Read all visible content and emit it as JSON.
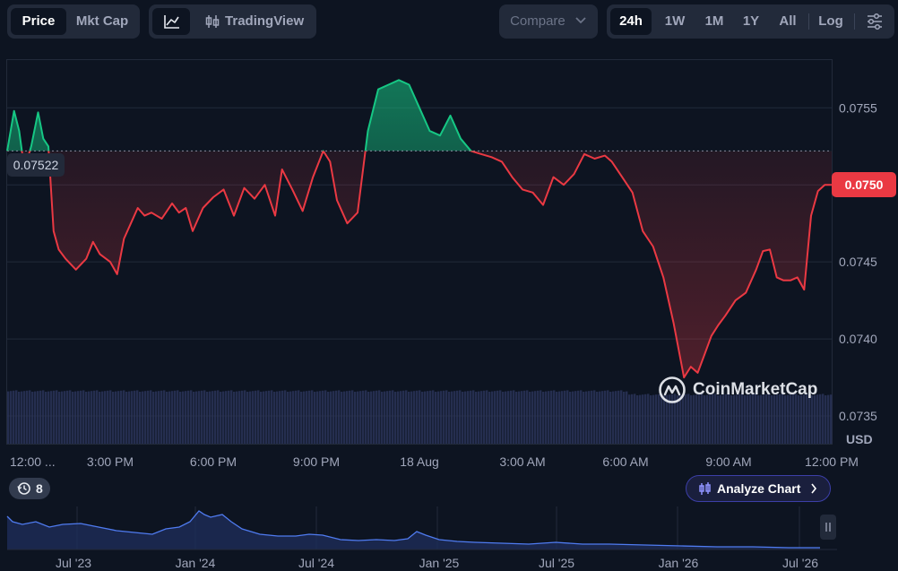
{
  "header": {
    "metric_tabs": [
      {
        "label": "Price",
        "active": true
      },
      {
        "label": "Mkt Cap",
        "active": false
      }
    ],
    "chart_style_tradingview": "TradingView",
    "compare_label": "Compare",
    "range_tabs": [
      {
        "label": "24h",
        "active": true
      },
      {
        "label": "1W",
        "active": false
      },
      {
        "label": "1M",
        "active": false
      },
      {
        "label": "1Y",
        "active": false
      },
      {
        "label": "All",
        "active": false
      }
    ],
    "log_label": "Log"
  },
  "chart_data": {
    "type": "area",
    "baseline_price": 0.07522,
    "baseline_label": "0.07522",
    "current_price_label": "0.0750",
    "currency_label": "USD",
    "y_ticks": [
      "0.0755",
      "0.0750",
      "0.0745",
      "0.0740",
      "0.0735"
    ],
    "y_tick_values": [
      0.0755,
      0.075,
      0.0745,
      0.074,
      0.0735
    ],
    "ylim": [
      0.07332,
      0.07581
    ],
    "x_ticks": [
      "12:00 ...",
      "3:00 PM",
      "6:00 PM",
      "9:00 PM",
      "18 Aug",
      "3:00 AM",
      "6:00 AM",
      "9:00 AM",
      "12:00 PM"
    ],
    "x_tick_hours": [
      0,
      3,
      6,
      9,
      12,
      15,
      18,
      21,
      24
    ],
    "xlim": [
      0,
      24
    ],
    "colors": {
      "above": "#16c784",
      "below": "#ea3943"
    },
    "series": [
      {
        "x": [
          0,
          0.2,
          0.35,
          0.5,
          0.7,
          0.9,
          1.05,
          1.2,
          1.35,
          1.5,
          1.7,
          2.0,
          2.3,
          2.5,
          2.7,
          3.0,
          3.2,
          3.4,
          3.6,
          3.8,
          4.0,
          4.2,
          4.5,
          4.8,
          5.0,
          5.2,
          5.4,
          5.7,
          6.0,
          6.3,
          6.6,
          6.9,
          7.2,
          7.5,
          7.8,
          8.0,
          8.3,
          8.6,
          8.9,
          9.2,
          9.4,
          9.6,
          9.9,
          10.2,
          10.5,
          10.8,
          11.1,
          11.4,
          11.7,
          12.0,
          12.3,
          12.6,
          12.9,
          13.2,
          13.5,
          13.8,
          14.1,
          14.4,
          14.7,
          15.0,
          15.3,
          15.6,
          15.9,
          16.2,
          16.5,
          16.8,
          17.1,
          17.4,
          17.6,
          17.9,
          18.2,
          18.5,
          18.8,
          19.1,
          19.4,
          19.7,
          19.9,
          20.1,
          20.3,
          20.5,
          20.7,
          20.9,
          21.2,
          21.5,
          21.8,
          22.0,
          22.2,
          22.4,
          22.6,
          22.8,
          23.0,
          23.2,
          23.4,
          23.6,
          23.8,
          24.0
        ],
        "y": [
          0.07522,
          0.07548,
          0.07535,
          0.0751,
          0.07525,
          0.07547,
          0.0753,
          0.07525,
          0.0747,
          0.07458,
          0.07452,
          0.07445,
          0.07452,
          0.07463,
          0.07455,
          0.0745,
          0.07442,
          0.07465,
          0.07475,
          0.07485,
          0.0748,
          0.07482,
          0.07478,
          0.07488,
          0.07482,
          0.07485,
          0.0747,
          0.07485,
          0.07492,
          0.07497,
          0.0748,
          0.07498,
          0.07491,
          0.075,
          0.0748,
          0.0751,
          0.07497,
          0.07483,
          0.07505,
          0.07522,
          0.07515,
          0.0749,
          0.07475,
          0.07482,
          0.07535,
          0.07562,
          0.07565,
          0.07568,
          0.07565,
          0.0755,
          0.07535,
          0.07532,
          0.07545,
          0.0753,
          0.07522,
          0.0752,
          0.07518,
          0.07515,
          0.07505,
          0.07497,
          0.07495,
          0.07487,
          0.07505,
          0.075,
          0.07507,
          0.0752,
          0.07517,
          0.07519,
          0.07515,
          0.07505,
          0.07495,
          0.0747,
          0.0746,
          0.0744,
          0.0741,
          0.07375,
          0.07382,
          0.07378,
          0.0739,
          0.07402,
          0.07409,
          0.07415,
          0.07425,
          0.0743,
          0.07445,
          0.07457,
          0.07458,
          0.0744,
          0.07438,
          0.07438,
          0.0744,
          0.07432,
          0.0748,
          0.07496,
          0.075,
          0.075
        ]
      }
    ]
  },
  "history_count": "8",
  "analyze_label": "Analyze Chart",
  "watermark": "CoinMarketCap",
  "navigator": {
    "labels": [
      "Jul '23",
      "Jan '24",
      "Jul '24",
      "Jan '25",
      "Jul '25",
      "Jan '26",
      "Jul '26"
    ]
  }
}
